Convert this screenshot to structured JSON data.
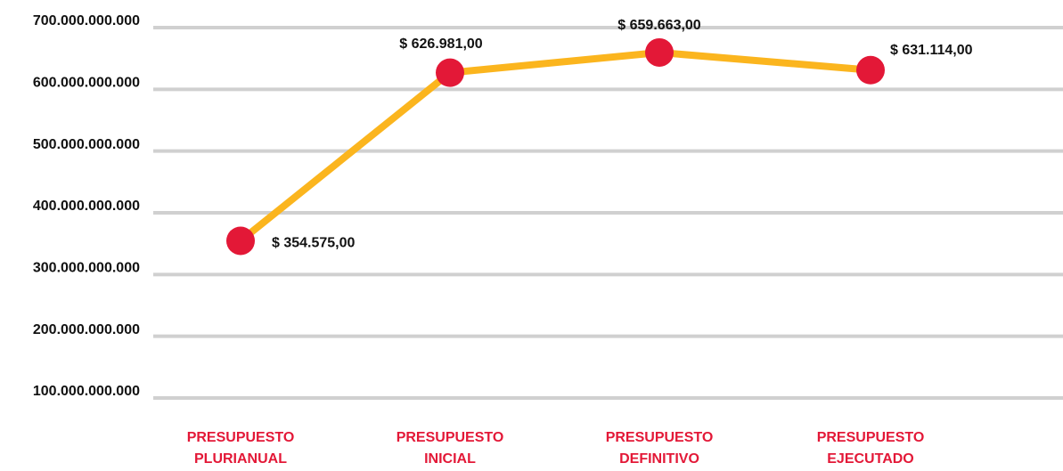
{
  "chart_data": {
    "type": "line",
    "categories": [
      "PRESUPUESTO PLURIANUAL",
      "PRESUPUESTO INICIAL",
      "PRESUPUESTO DEFINITIVO",
      "PRESUPUESTO EJECUTADO"
    ],
    "series": [
      {
        "color": "#fbb51e",
        "marker_color": "#e31837",
        "values": [
          354575000000,
          626981000000,
          659663000000,
          631114000000
        ],
        "value_labels": [
          "$ 354.575,00",
          "$ 626.981,00",
          "$ 659.663,00",
          "$ 631.114,00"
        ]
      }
    ],
    "ylim": [
      100000000000,
      700000000000
    ],
    "yticks": [
      {
        "value": 100000000000,
        "label": "100.000.000.000"
      },
      {
        "value": 200000000000,
        "label": "200.000.000.000"
      },
      {
        "value": 300000000000,
        "label": "300.000.000.000"
      },
      {
        "value": 400000000000,
        "label": "400.000.000.000"
      },
      {
        "value": 500000000000,
        "label": "500.000.000.000"
      },
      {
        "value": 600000000000,
        "label": "600.000.000.000"
      },
      {
        "value": 700000000000,
        "label": "700.000.000.000"
      }
    ],
    "grid": true
  }
}
